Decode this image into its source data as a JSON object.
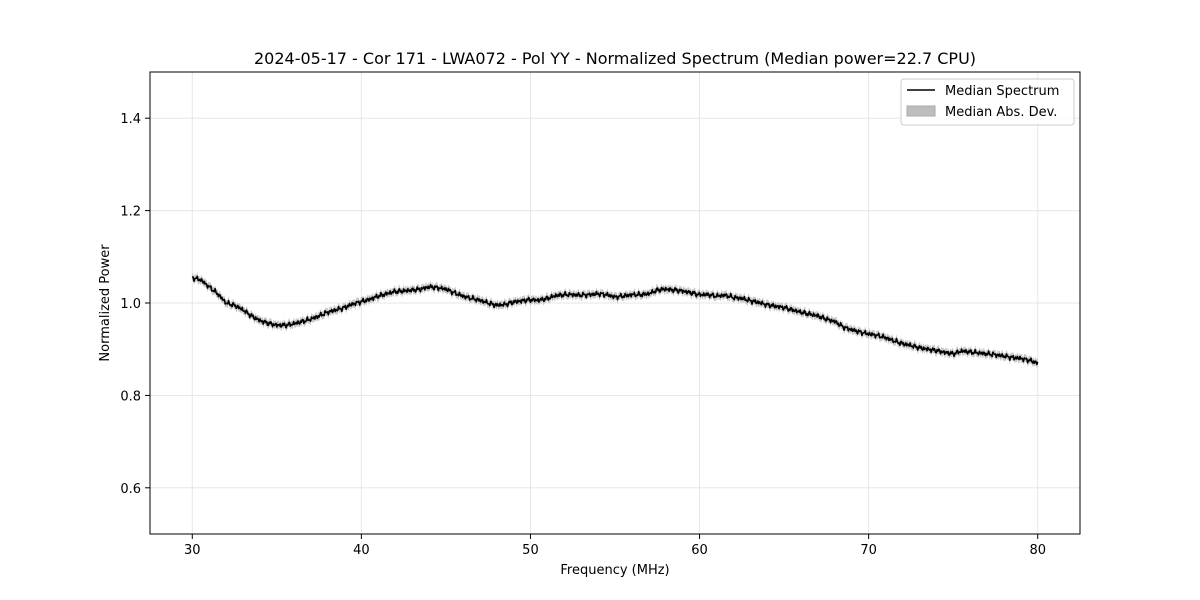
{
  "chart_data": {
    "type": "line",
    "title": "2024-05-17 - Cor 171 - LWA072 - Pol YY - Normalized Spectrum (Median power=22.7 CPU)",
    "xlabel": "Frequency (MHz)",
    "ylabel": "Normalized Power",
    "xlim": [
      27.5,
      82.5
    ],
    "ylim": [
      0.5,
      1.5
    ],
    "xticks": [
      30,
      40,
      50,
      60,
      70,
      80
    ],
    "yticks": [
      0.6,
      0.8,
      1.0,
      1.2,
      1.4
    ],
    "xtick_labels": [
      "30",
      "40",
      "50",
      "60",
      "70",
      "80"
    ],
    "ytick_labels": [
      "0.6",
      "0.8",
      "1.0",
      "1.2",
      "1.4"
    ],
    "grid": true,
    "legend_position": "top-right",
    "legend": [
      "Median Spectrum",
      "Median Abs. Dev."
    ],
    "series": [
      {
        "name": "Median Spectrum",
        "x": [
          30,
          30.5,
          31,
          31.5,
          32,
          32.5,
          33,
          33.5,
          34,
          34.5,
          35,
          35.5,
          36,
          36.5,
          37,
          37.5,
          38,
          38.5,
          39,
          39.5,
          40,
          40.5,
          41,
          41.5,
          42,
          42.5,
          43,
          43.5,
          44,
          44.5,
          45,
          45.5,
          46,
          46.5,
          47,
          47.5,
          48,
          48.5,
          49,
          49.5,
          50,
          50.5,
          51,
          51.5,
          52,
          52.5,
          53,
          53.5,
          54,
          54.5,
          55,
          55.5,
          56,
          56.5,
          57,
          57.5,
          58,
          58.5,
          59,
          59.5,
          60,
          60.5,
          61,
          61.5,
          62,
          62.5,
          63,
          63.5,
          64,
          64.5,
          65,
          65.5,
          66,
          66.5,
          67,
          67.5,
          68,
          68.5,
          69,
          69.5,
          70,
          70.5,
          71,
          71.5,
          72,
          72.5,
          73,
          73.5,
          74,
          74.5,
          75,
          75.5,
          76,
          76.5,
          77,
          77.5,
          78,
          78.5,
          79,
          79.5,
          80
        ],
        "values": [
          1.055,
          1.05,
          1.035,
          1.02,
          1.0,
          0.995,
          0.985,
          0.972,
          0.962,
          0.956,
          0.952,
          0.952,
          0.955,
          0.96,
          0.965,
          0.972,
          0.98,
          0.985,
          0.99,
          0.998,
          1.003,
          1.008,
          1.015,
          1.02,
          1.025,
          1.026,
          1.028,
          1.03,
          1.035,
          1.033,
          1.03,
          1.022,
          1.015,
          1.01,
          1.006,
          1.0,
          0.995,
          0.997,
          1.002,
          1.005,
          1.007,
          1.006,
          1.01,
          1.016,
          1.018,
          1.018,
          1.017,
          1.018,
          1.02,
          1.018,
          1.013,
          1.015,
          1.018,
          1.018,
          1.02,
          1.028,
          1.03,
          1.028,
          1.026,
          1.022,
          1.018,
          1.018,
          1.015,
          1.017,
          1.012,
          1.01,
          1.005,
          1.001,
          0.996,
          0.993,
          0.99,
          0.985,
          0.98,
          0.976,
          0.972,
          0.965,
          0.96,
          0.948,
          0.942,
          0.937,
          0.933,
          0.93,
          0.925,
          0.918,
          0.912,
          0.908,
          0.903,
          0.9,
          0.897,
          0.893,
          0.89,
          0.896,
          0.894,
          0.892,
          0.89,
          0.888,
          0.885,
          0.882,
          0.88,
          0.876,
          0.87
        ],
        "mad": 0.008,
        "color": "#000000"
      }
    ]
  }
}
